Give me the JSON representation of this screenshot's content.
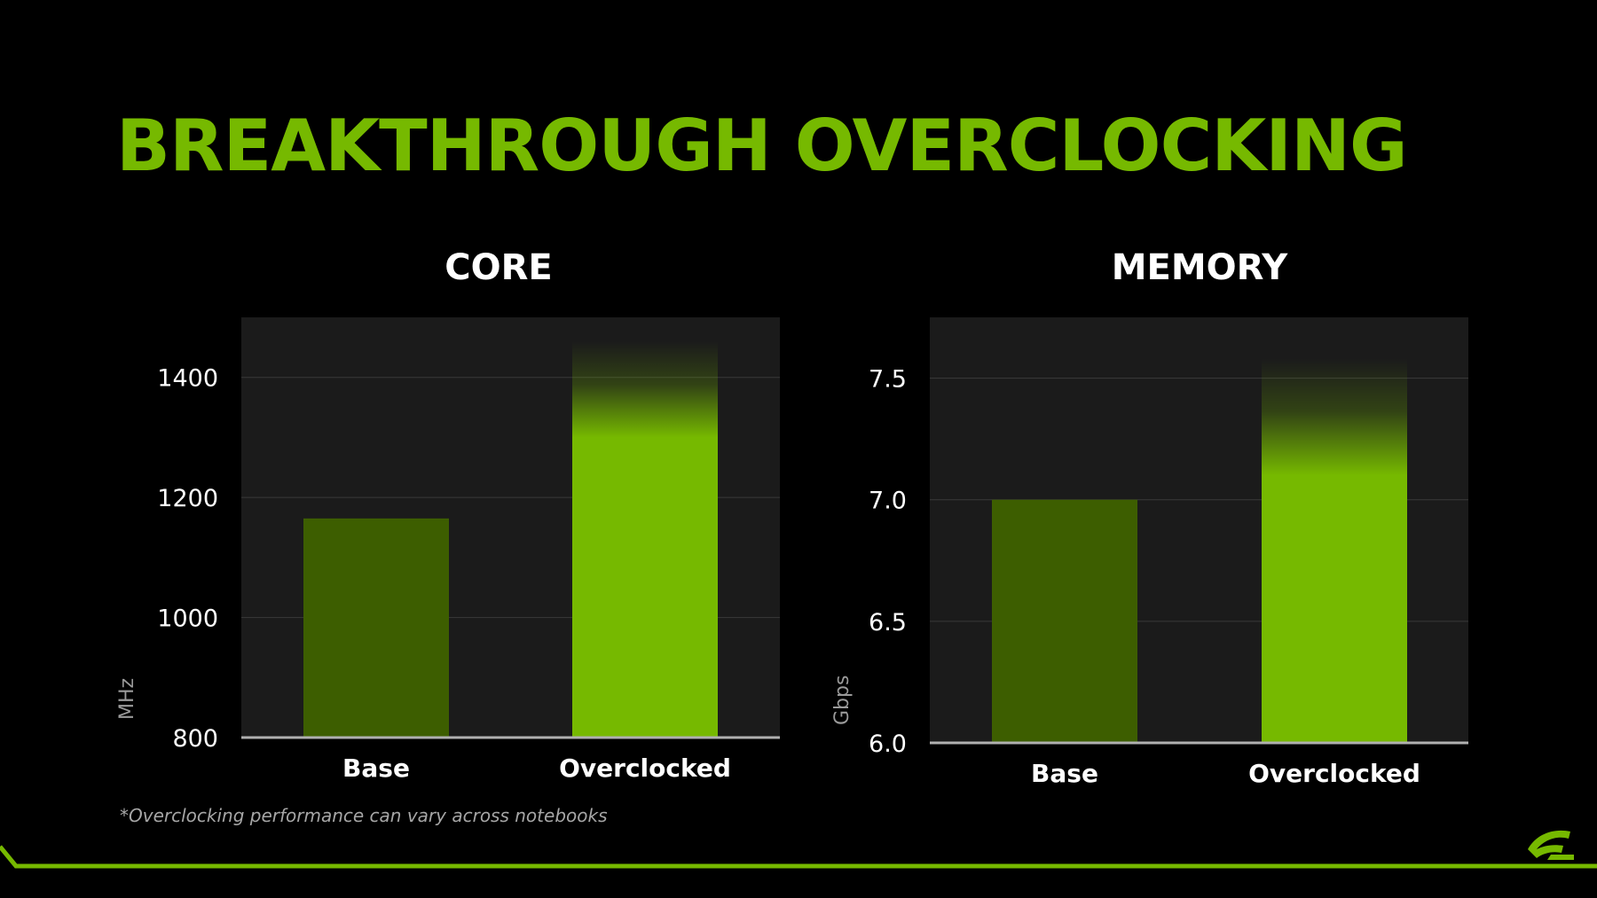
{
  "slide": {
    "title": "BREAKTHROUGH OVERCLOCKING",
    "footnote": "*Overclocking performance can vary across notebooks",
    "logo_icon": "nvidia-eye-logo",
    "colors": {
      "background": "#000000",
      "accent": "#76b900",
      "base_bar": "#3d5e00",
      "plot_bg": "#1b1b1b"
    }
  },
  "chart_data": [
    {
      "type": "bar",
      "title": "CORE",
      "categories": [
        "Base",
        "Overclocked"
      ],
      "values": [
        1165,
        1460
      ],
      "ylabel": "MHz",
      "ylim": [
        800,
        1500
      ],
      "yticks": [
        800,
        1000,
        1200,
        1400
      ],
      "ytick_labels": [
        "800",
        "1000",
        "1200",
        "1400"
      ],
      "grid": true,
      "overclock_fade_from": 1300
    },
    {
      "type": "bar",
      "title": "MEMORY",
      "categories": [
        "Base",
        "Overclocked"
      ],
      "values": [
        7.0,
        7.58
      ],
      "ylabel": "Gbps",
      "ylim": [
        6.0,
        7.75
      ],
      "yticks": [
        6.0,
        6.5,
        7.0,
        7.5
      ],
      "ytick_labels": [
        "6.0",
        "6.5",
        "7.0",
        "7.5"
      ],
      "grid": true,
      "overclock_fade_from": 7.1
    }
  ]
}
